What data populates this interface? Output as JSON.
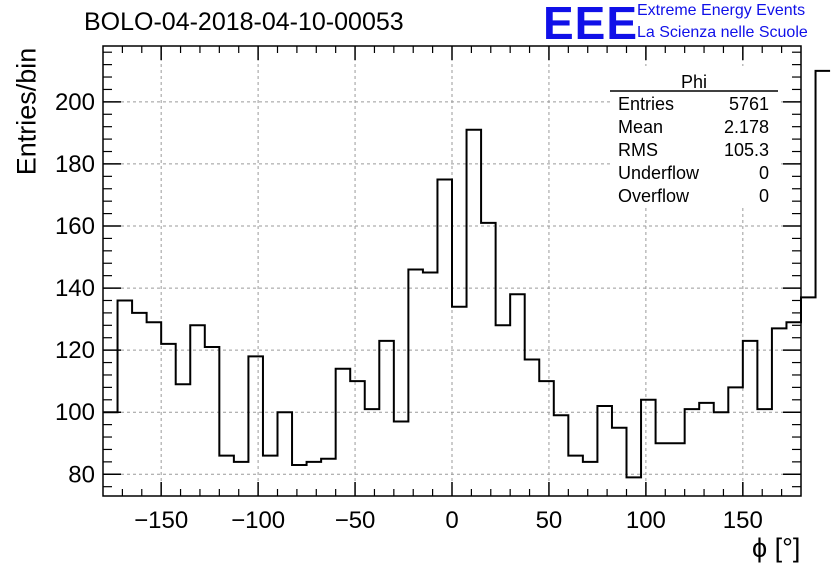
{
  "chart_data": {
    "type": "histogram",
    "title": "BOLO-04-2018-04-10-00053",
    "xlabel": "ϕ [°]",
    "ylabel": "Entries/bin",
    "xlim": [
      -180,
      180
    ],
    "ylim": [
      73,
      218
    ],
    "grid": true,
    "x_ticks": [
      -150,
      -100,
      -50,
      0,
      50,
      100,
      150
    ],
    "y_ticks": [
      80,
      100,
      120,
      140,
      160,
      180,
      200
    ],
    "bin_width": 7.5,
    "bin_edges_start": -180,
    "values": [
      100,
      136,
      132,
      129,
      122,
      109,
      128,
      121,
      86,
      84,
      118,
      86,
      100,
      83,
      84,
      85,
      114,
      110,
      101,
      123,
      97,
      146,
      145,
      175,
      134,
      191,
      161,
      128,
      138,
      117,
      110,
      99,
      86,
      84,
      102,
      95,
      79,
      104,
      90,
      90,
      101,
      103,
      100,
      108,
      123,
      101,
      127,
      129,
      137,
      210
    ]
  },
  "logo": {
    "mark": "EEE",
    "line1": "Extreme Energy Events",
    "line2": "La Scienza nelle Scuole"
  },
  "stats_box": {
    "name": "Phi",
    "rows": [
      {
        "label": "Entries",
        "value": "5761"
      },
      {
        "label": "Mean",
        "value": "2.178"
      },
      {
        "label": "RMS",
        "value": "105.3"
      },
      {
        "label": "Underflow",
        "value": "0"
      },
      {
        "label": "Overflow",
        "value": "0"
      }
    ]
  }
}
